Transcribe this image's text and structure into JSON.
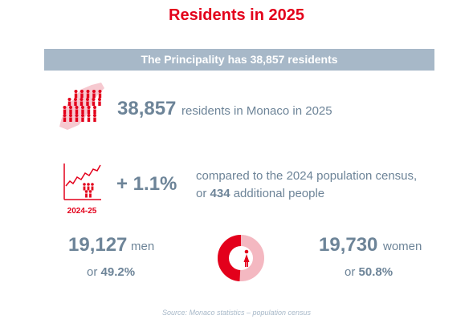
{
  "title": "Residents in 2025",
  "banner": "The Principality has 38,857 residents",
  "residents": {
    "icon": "monaco-map-people-icon",
    "number": "38,857",
    "label": "residents in Monaco in 2025"
  },
  "growth": {
    "icon": "growth-chart-people-icon",
    "period": "2024-25",
    "percent": "+ 1.1%",
    "line1": "compared to the 2024 population census,",
    "line2_pre": "or ",
    "line2_num": "434",
    "line2_post": " additional people"
  },
  "men": {
    "number": "19,127",
    "label": "men",
    "pct_pre": "or ",
    "pct": "49.2%"
  },
  "women": {
    "number": "19,730",
    "label": "women",
    "pct_pre": "or ",
    "pct": "50.8%"
  },
  "donut": {
    "icon": "gender-donut-icon",
    "men_share": 49.2,
    "women_share": 50.8,
    "men_color": "#e3001b",
    "women_color": "#f4b8c1"
  },
  "source": "Source: Monaco statistics – population census"
}
